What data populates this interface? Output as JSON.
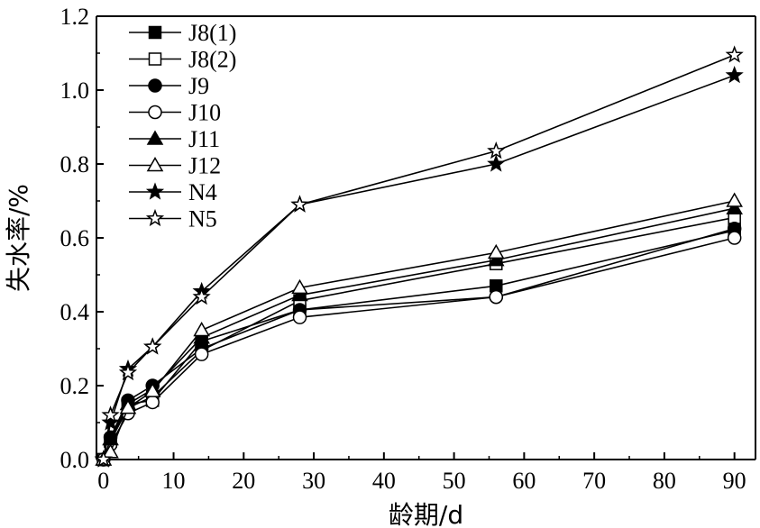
{
  "chart_data": {
    "type": "line",
    "xlabel": "龄期/d",
    "ylabel": "失水率/%",
    "xlim": [
      -1,
      93
    ],
    "ylim": [
      0.0,
      1.2
    ],
    "x_ticks": [
      0,
      10,
      20,
      30,
      40,
      50,
      60,
      70,
      80,
      90
    ],
    "y_ticks": [
      0.0,
      0.2,
      0.4,
      0.6,
      0.8,
      1.0,
      1.2
    ],
    "x_tick_labels": [
      "0",
      "10",
      "20",
      "30",
      "40",
      "50",
      "60",
      "70",
      "80",
      "90"
    ],
    "y_tick_labels": [
      "0.0",
      "0.2",
      "0.4",
      "0.6",
      "0.8",
      "1.0",
      "1.2"
    ],
    "legend_position": "top-left",
    "grid": false,
    "line_color": "#000000",
    "series": [
      {
        "name": "J8(1)",
        "marker": "square-filled",
        "points": [
          [
            0,
            0.0
          ],
          [
            1,
            0.05
          ],
          [
            3.5,
            0.15
          ],
          [
            7,
            0.16
          ],
          [
            14,
            0.32
          ],
          [
            28,
            0.405
          ],
          [
            56,
            0.47
          ],
          [
            90,
            0.62
          ]
        ]
      },
      {
        "name": "J8(2)",
        "marker": "square-open",
        "points": [
          [
            0,
            0.0
          ],
          [
            1,
            0.05
          ],
          [
            3.5,
            0.14
          ],
          [
            7,
            0.17
          ],
          [
            14,
            0.295
          ],
          [
            28,
            0.43
          ],
          [
            56,
            0.53
          ],
          [
            90,
            0.655
          ]
        ]
      },
      {
        "name": "J9",
        "marker": "circle-filled",
        "points": [
          [
            0,
            0.0
          ],
          [
            1,
            0.06
          ],
          [
            3.5,
            0.16
          ],
          [
            7,
            0.2
          ],
          [
            14,
            0.3
          ],
          [
            28,
            0.405
          ],
          [
            56,
            0.44
          ],
          [
            90,
            0.625
          ]
        ]
      },
      {
        "name": "J10",
        "marker": "circle-open",
        "points": [
          [
            0,
            0.0
          ],
          [
            1,
            0.04
          ],
          [
            3.5,
            0.125
          ],
          [
            7,
            0.155
          ],
          [
            14,
            0.285
          ],
          [
            28,
            0.385
          ],
          [
            56,
            0.44
          ],
          [
            90,
            0.6
          ]
        ]
      },
      {
        "name": "J11",
        "marker": "triangle-filled",
        "points": [
          [
            0,
            0.0
          ],
          [
            1,
            0.055
          ],
          [
            3.5,
            0.15
          ],
          [
            7,
            0.19
          ],
          [
            14,
            0.33
          ],
          [
            28,
            0.445
          ],
          [
            56,
            0.54
          ],
          [
            90,
            0.68
          ]
        ]
      },
      {
        "name": "J12",
        "marker": "triangle-open",
        "points": [
          [
            0,
            0.0
          ],
          [
            1,
            0.02
          ],
          [
            3.5,
            0.14
          ],
          [
            7,
            0.185
          ],
          [
            14,
            0.35
          ],
          [
            28,
            0.465
          ],
          [
            56,
            0.56
          ],
          [
            90,
            0.7
          ]
        ]
      },
      {
        "name": "N4",
        "marker": "star-filled",
        "points": [
          [
            0,
            0.0
          ],
          [
            1,
            0.1
          ],
          [
            3.5,
            0.245
          ],
          [
            7,
            0.305
          ],
          [
            14,
            0.455
          ],
          [
            28,
            0.69
          ],
          [
            56,
            0.8
          ],
          [
            90,
            1.04
          ]
        ]
      },
      {
        "name": "N5",
        "marker": "star-open",
        "points": [
          [
            0,
            0.0
          ],
          [
            1,
            0.12
          ],
          [
            3.5,
            0.235
          ],
          [
            7,
            0.305
          ],
          [
            14,
            0.44
          ],
          [
            28,
            0.69
          ],
          [
            56,
            0.835
          ],
          [
            90,
            1.095
          ]
        ]
      }
    ]
  }
}
